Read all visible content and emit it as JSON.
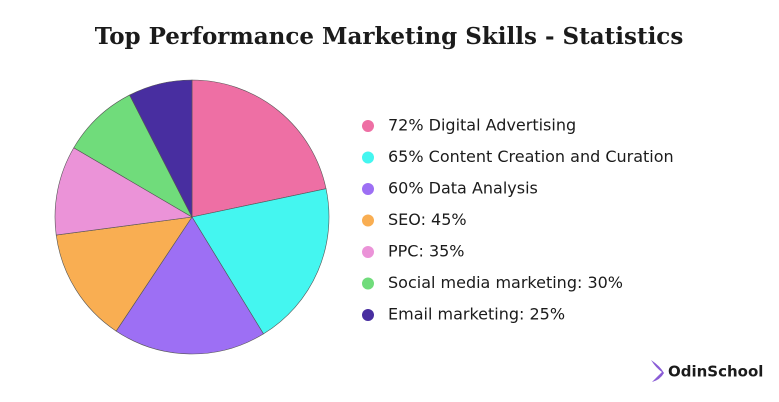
{
  "chart_data": {
    "type": "pie",
    "title": "Top Performance Marketing Skills - Statistics",
    "categories": [
      "72% Digital Advertising",
      "65% Content Creation and Curation",
      "60% Data Analysis",
      "SEO: 45%",
      "PPC: 35%",
      "Social media marketing: 30%",
      "Email marketing: 25%"
    ],
    "values": [
      72,
      65,
      60,
      45,
      35,
      30,
      25
    ],
    "colors": [
      "#ee6fa4",
      "#44f6f0",
      "#9d6ff4",
      "#f9ae52",
      "#eb93d8",
      "#70dc7b",
      "#482ea0"
    ]
  },
  "brand": "OdinSchool"
}
